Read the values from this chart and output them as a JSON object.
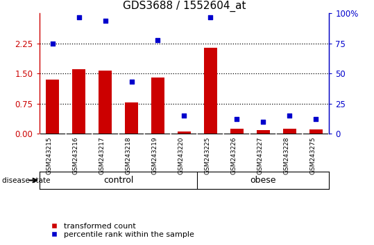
{
  "title": "GDS3688 / 1552604_at",
  "samples": [
    "GSM243215",
    "GSM243216",
    "GSM243217",
    "GSM243218",
    "GSM243219",
    "GSM243220",
    "GSM243225",
    "GSM243226",
    "GSM243227",
    "GSM243228",
    "GSM243275"
  ],
  "transformed_count": [
    1.35,
    1.6,
    1.57,
    0.78,
    1.4,
    0.05,
    2.15,
    0.12,
    0.09,
    0.12,
    0.1
  ],
  "percentile_rank": [
    75,
    97,
    94,
    43,
    78,
    15,
    97,
    12,
    10,
    15,
    12
  ],
  "groups": [
    {
      "label": "control",
      "start": 0,
      "end": 6,
      "color": "#b2f0b2"
    },
    {
      "label": "obese",
      "start": 6,
      "end": 11,
      "color": "#33cc33"
    }
  ],
  "bar_color": "#cc0000",
  "dot_color": "#0000cc",
  "ylim_left": [
    0,
    3
  ],
  "ylim_right": [
    0,
    100
  ],
  "yticks_left": [
    0,
    0.75,
    1.5,
    2.25
  ],
  "yticks_right": [
    0,
    25,
    50,
    75,
    100
  ],
  "hlines": [
    0.75,
    1.5,
    2.25
  ],
  "disease_state_label": "disease state",
  "legend_items": [
    {
      "label": "transformed count",
      "color": "#cc0000"
    },
    {
      "label": "percentile rank within the sample",
      "color": "#0000cc"
    }
  ],
  "xlabel_area_color": "#cccccc",
  "title_fontsize": 11,
  "tick_fontsize": 8.5,
  "sample_fontsize": 6.5,
  "group_fontsize": 9,
  "legend_fontsize": 8
}
